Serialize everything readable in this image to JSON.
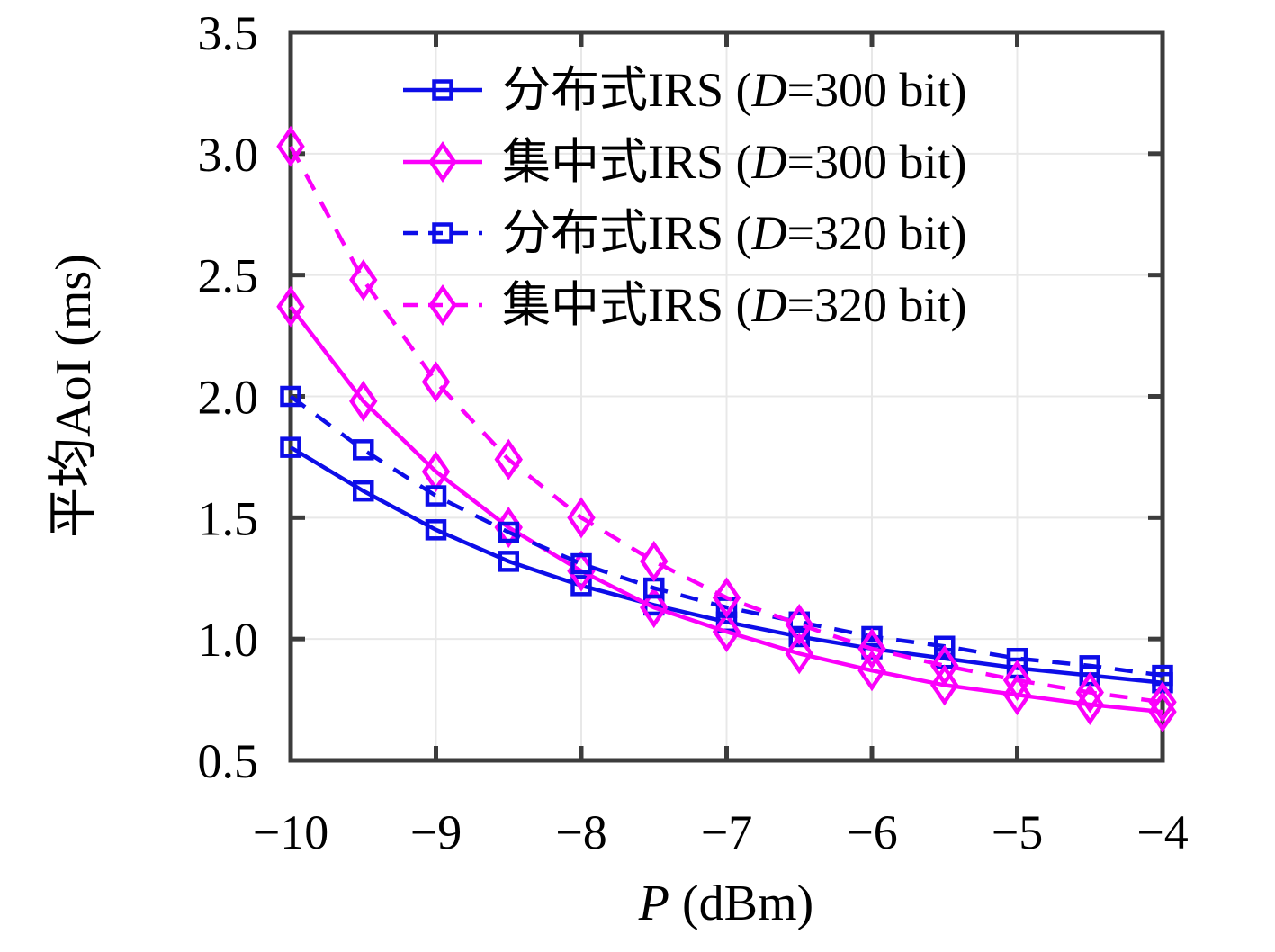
{
  "chart_data": {
    "type": "line",
    "title": "",
    "xlabel": {
      "var": "P",
      "rest": " (dBm)"
    },
    "ylabel": "平均AoI (ms)",
    "xlim": [
      -10,
      -4
    ],
    "ylim": [
      0.5,
      3.5
    ],
    "x_ticks": [
      -10,
      -9,
      -8,
      -7,
      -6,
      -5,
      -4
    ],
    "x_tick_labels": [
      "−10",
      "−9",
      "−8",
      "−7",
      "−6",
      "−5",
      "−4"
    ],
    "y_ticks": [
      0.5,
      1.0,
      1.5,
      2.0,
      2.5,
      3.0,
      3.5
    ],
    "y_tick_labels": [
      "0.5",
      "1.0",
      "1.5",
      "2.0",
      "2.5",
      "3.0",
      "3.5"
    ],
    "grid": true,
    "legend_position": "inside-top-left",
    "x": [
      -10,
      -9.5,
      -9,
      -8.5,
      -8,
      -7.5,
      -7,
      -6.5,
      -6,
      -5.5,
      -5,
      -4.5,
      -4
    ],
    "series": [
      {
        "label": {
          "prefix": "分布式IRS (",
          "var": "D",
          "suffix": "=300 bit)"
        },
        "color": "#0d0de8",
        "style": "solid",
        "marker": "square",
        "values": [
          1.79,
          1.61,
          1.45,
          1.32,
          1.22,
          1.14,
          1.07,
          1.01,
          0.96,
          0.92,
          0.88,
          0.85,
          0.82
        ]
      },
      {
        "label": {
          "prefix": "集中式IRS (",
          "var": "D",
          "suffix": "=300 bit)"
        },
        "color": "#fb00fb",
        "style": "solid",
        "marker": "diamond",
        "values": [
          2.37,
          1.98,
          1.69,
          1.46,
          1.28,
          1.13,
          1.03,
          0.94,
          0.87,
          0.81,
          0.77,
          0.73,
          0.7
        ]
      },
      {
        "label": {
          "prefix": "分布式IRS (",
          "var": "D",
          "suffix": "=320 bit)"
        },
        "color": "#0d0de8",
        "style": "dashed",
        "marker": "square",
        "values": [
          2.0,
          1.78,
          1.59,
          1.44,
          1.31,
          1.21,
          1.13,
          1.07,
          1.01,
          0.97,
          0.92,
          0.89,
          0.85
        ]
      },
      {
        "label": {
          "prefix": "集中式IRS (",
          "var": "D",
          "suffix": "=320 bit)"
        },
        "color": "#fb00fb",
        "style": "dashed",
        "marker": "diamond",
        "values": [
          3.03,
          2.48,
          2.06,
          1.74,
          1.5,
          1.32,
          1.17,
          1.06,
          0.96,
          0.89,
          0.83,
          0.78,
          0.74
        ]
      }
    ],
    "colors": {
      "axis": "#3c3c3c",
      "grid": "#e8e8e8",
      "background": "#ffffff",
      "blue": "#0d0de8",
      "magenta": "#fb00fb"
    }
  }
}
